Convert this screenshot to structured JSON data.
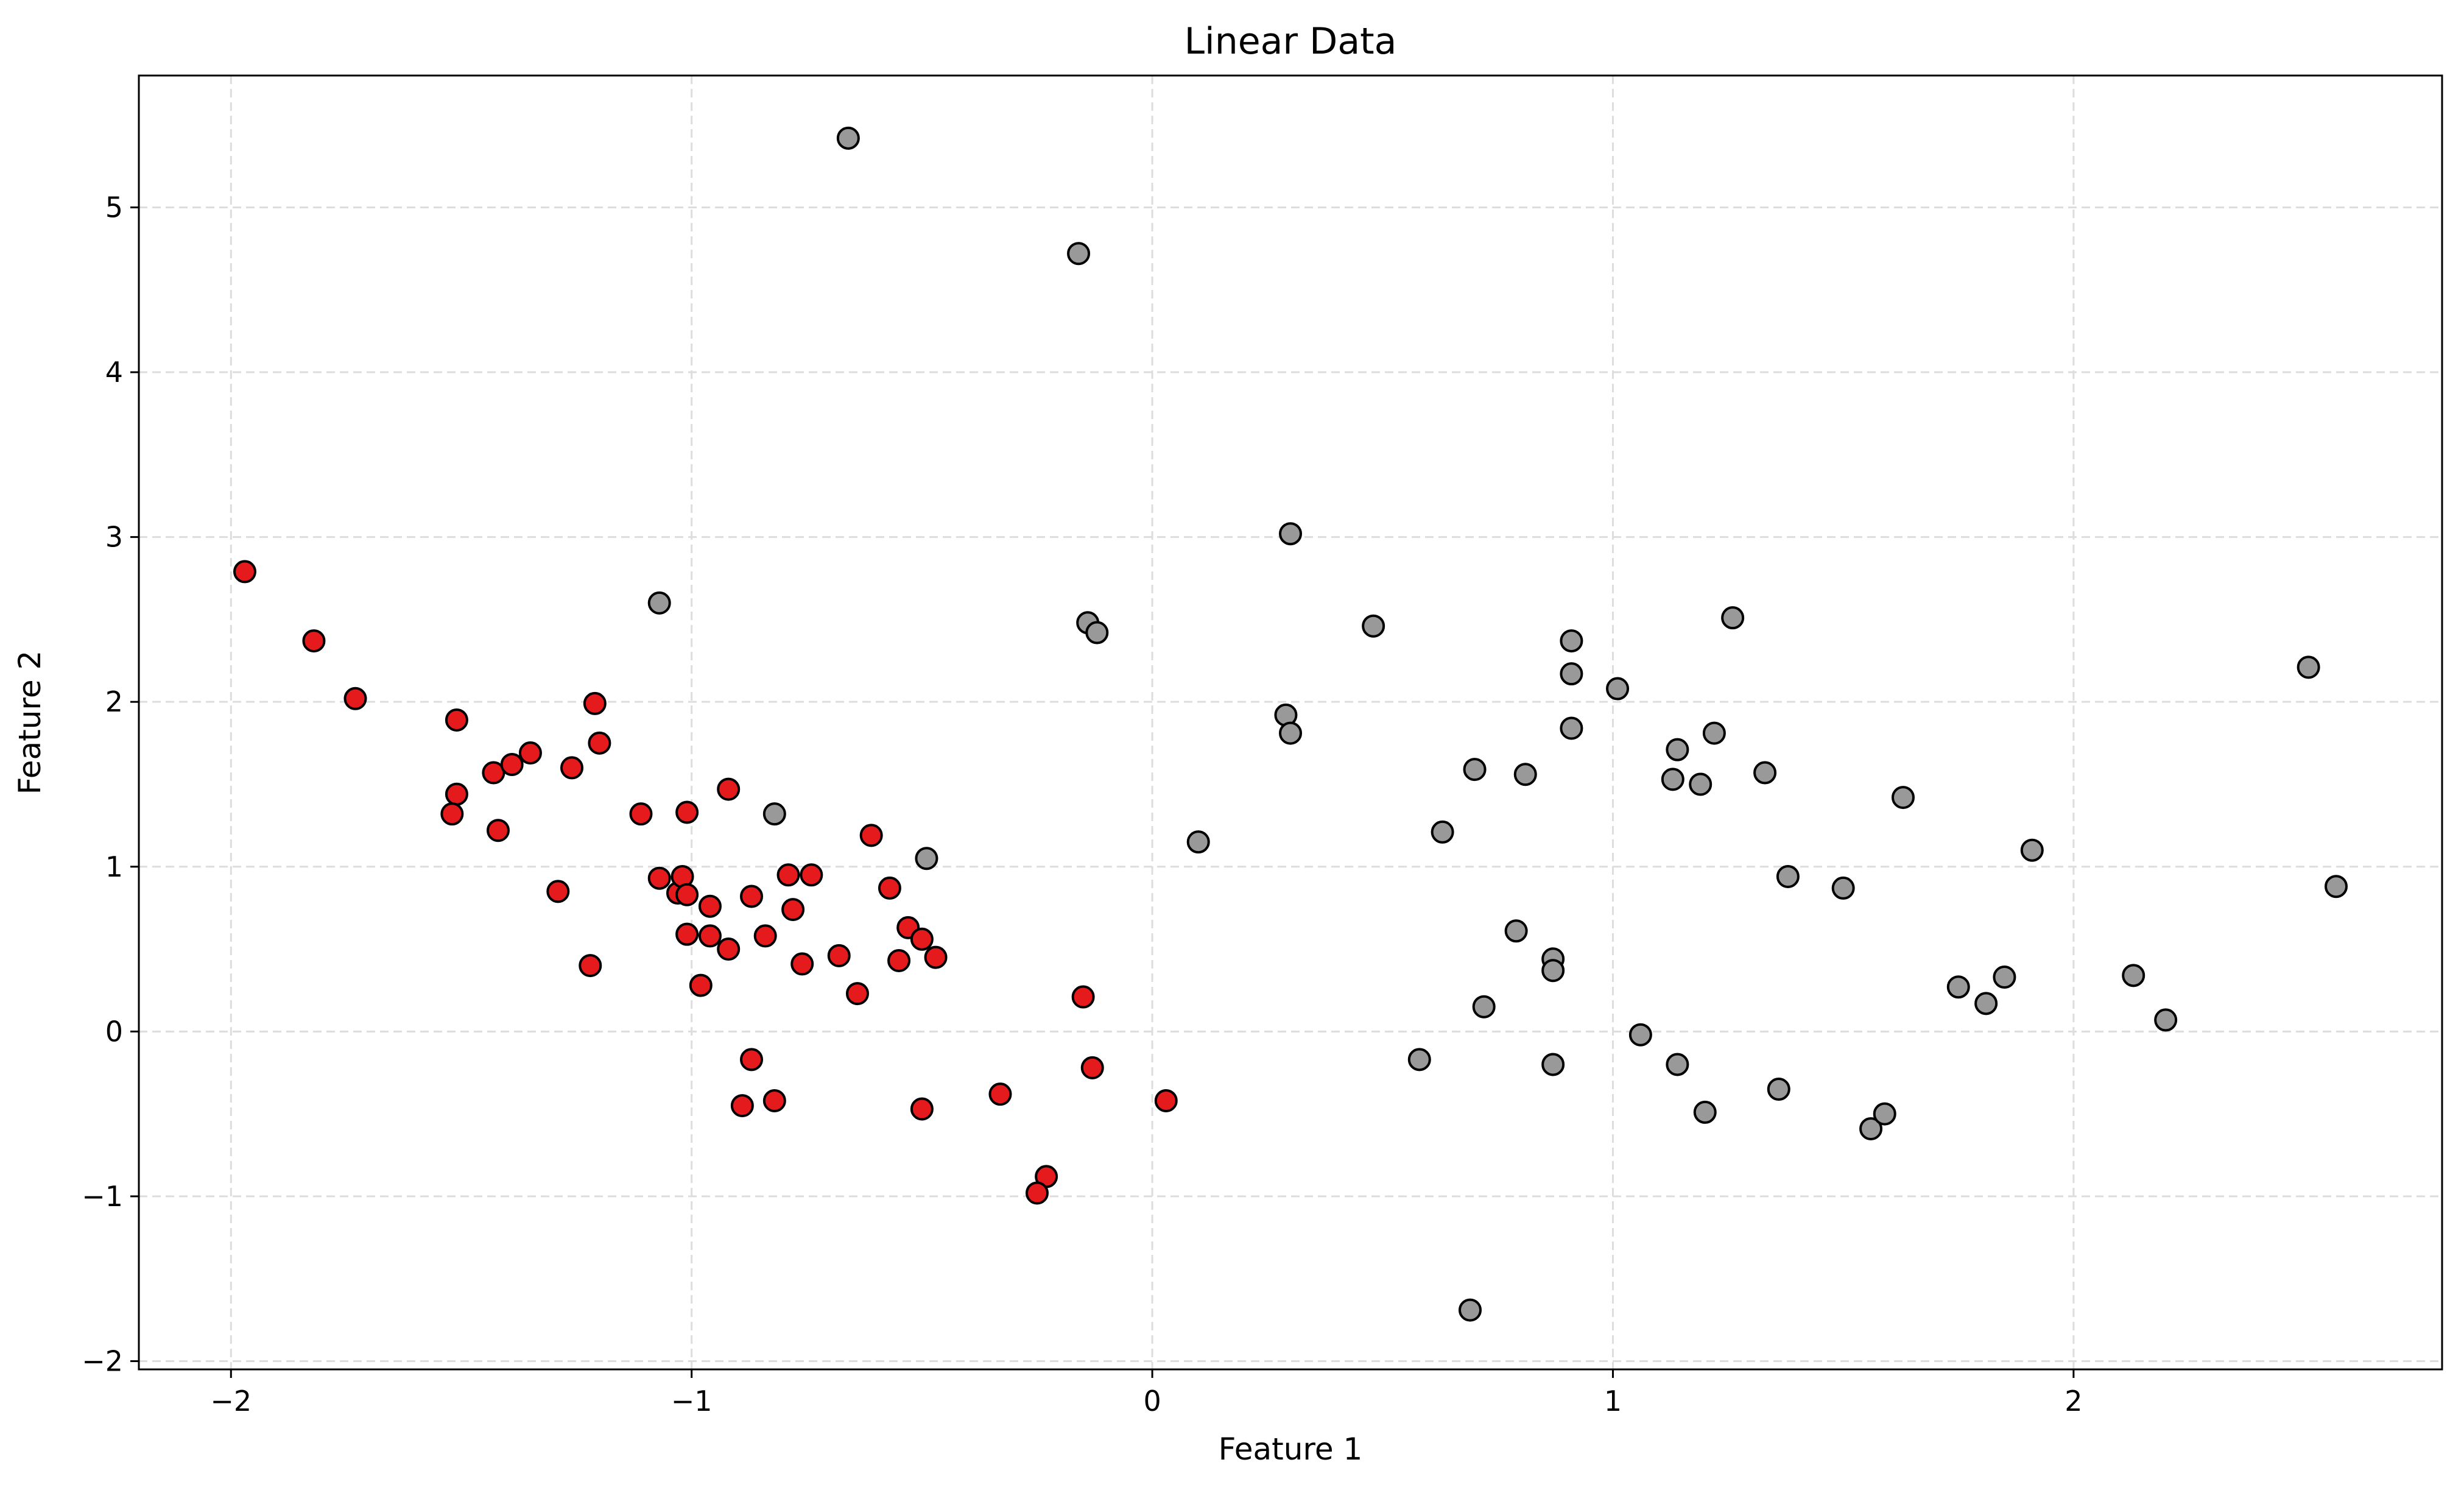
{
  "chart_data": {
    "type": "scatter",
    "title": "Linear Data",
    "xlabel": "Feature 1",
    "ylabel": "Feature 2",
    "xlim": [
      -2.2,
      2.8
    ],
    "ylim": [
      -2.05,
      5.8
    ],
    "xticks": [
      -2,
      -1,
      0,
      1,
      2
    ],
    "yticks": [
      -2,
      -1,
      0,
      1,
      2,
      3,
      4,
      5
    ],
    "xtick_labels": [
      "−2",
      "−1",
      "0",
      "1",
      "2"
    ],
    "ytick_labels": [
      "−2",
      "−1",
      "0",
      "1",
      "2",
      "3",
      "4",
      "5"
    ],
    "grid": true,
    "colors": {
      "class_0": "#e41a1c",
      "class_1": "#999999",
      "edge": "#000000",
      "grid": "#dddddd"
    },
    "series": [
      {
        "color": "#e41a1c",
        "points": [
          [
            -1.97,
            2.79
          ],
          [
            -1.82,
            2.37
          ],
          [
            -1.73,
            2.02
          ],
          [
            -1.51,
            1.89
          ],
          [
            -1.51,
            1.44
          ],
          [
            -1.52,
            1.32
          ],
          [
            -1.43,
            1.57
          ],
          [
            -1.39,
            1.62
          ],
          [
            -1.35,
            1.69
          ],
          [
            -1.42,
            1.22
          ],
          [
            -1.26,
            1.6
          ],
          [
            -1.21,
            1.99
          ],
          [
            -1.2,
            1.75
          ],
          [
            -1.29,
            0.85
          ],
          [
            -1.22,
            0.4
          ],
          [
            -1.11,
            1.32
          ],
          [
            -1.07,
            0.93
          ],
          [
            -1.03,
            0.84
          ],
          [
            -1.02,
            0.94
          ],
          [
            -1.01,
            0.83
          ],
          [
            -1.01,
            1.33
          ],
          [
            -1.01,
            0.59
          ],
          [
            -0.98,
            0.28
          ],
          [
            -0.96,
            0.76
          ],
          [
            -0.96,
            0.58
          ],
          [
            -0.92,
            1.47
          ],
          [
            -0.92,
            0.5
          ],
          [
            -0.87,
            0.82
          ],
          [
            -0.84,
            0.58
          ],
          [
            -0.79,
            0.95
          ],
          [
            -0.78,
            0.74
          ],
          [
            -0.76,
            0.41
          ],
          [
            -0.74,
            0.95
          ],
          [
            -0.68,
            0.46
          ],
          [
            -0.64,
            0.23
          ],
          [
            -0.61,
            1.19
          ],
          [
            -0.57,
            0.87
          ],
          [
            -0.55,
            0.43
          ],
          [
            -0.53,
            0.63
          ],
          [
            -0.5,
            0.56
          ],
          [
            -0.47,
            0.45
          ],
          [
            -0.87,
            -0.17
          ],
          [
            -0.89,
            -0.45
          ],
          [
            -0.82,
            -0.42
          ],
          [
            -0.5,
            -0.47
          ],
          [
            -0.33,
            -0.38
          ],
          [
            -0.15,
            0.21
          ],
          [
            -0.13,
            -0.22
          ],
          [
            -0.23,
            -0.88
          ],
          [
            -0.25,
            -0.98
          ],
          [
            0.03,
            -0.42
          ]
        ]
      },
      {
        "color": "#999999",
        "points": [
          [
            -0.66,
            5.42
          ],
          [
            -0.16,
            4.72
          ],
          [
            -1.07,
            2.6
          ],
          [
            -0.14,
            2.48
          ],
          [
            -0.12,
            2.42
          ],
          [
            -0.82,
            1.32
          ],
          [
            -0.49,
            1.05
          ],
          [
            0.1,
            1.15
          ],
          [
            0.3,
            3.02
          ],
          [
            0.29,
            1.92
          ],
          [
            0.3,
            1.81
          ],
          [
            0.48,
            2.46
          ],
          [
            0.63,
            1.21
          ],
          [
            0.7,
            1.59
          ],
          [
            0.81,
            1.56
          ],
          [
            0.79,
            0.61
          ],
          [
            0.87,
            0.44
          ],
          [
            0.87,
            0.37
          ],
          [
            0.72,
            0.15
          ],
          [
            0.58,
            -0.17
          ],
          [
            0.87,
            -0.2
          ],
          [
            0.69,
            -1.69
          ],
          [
            0.91,
            2.37
          ],
          [
            0.91,
            2.17
          ],
          [
            0.91,
            1.84
          ],
          [
            1.01,
            2.08
          ],
          [
            1.06,
            -0.02
          ],
          [
            1.14,
            1.71
          ],
          [
            1.13,
            1.53
          ],
          [
            1.19,
            1.5
          ],
          [
            1.22,
            1.81
          ],
          [
            1.26,
            2.51
          ],
          [
            1.33,
            1.57
          ],
          [
            1.38,
            0.94
          ],
          [
            1.14,
            -0.2
          ],
          [
            1.2,
            -0.49
          ],
          [
            1.36,
            -0.35
          ],
          [
            1.5,
            0.87
          ],
          [
            1.56,
            -0.59
          ],
          [
            1.59,
            -0.5
          ],
          [
            1.63,
            1.42
          ],
          [
            1.75,
            0.27
          ],
          [
            1.81,
            0.17
          ],
          [
            1.85,
            0.33
          ],
          [
            1.91,
            1.1
          ],
          [
            2.13,
            0.34
          ],
          [
            2.2,
            0.07
          ],
          [
            2.51,
            2.21
          ],
          [
            2.57,
            0.88
          ]
        ]
      }
    ]
  }
}
